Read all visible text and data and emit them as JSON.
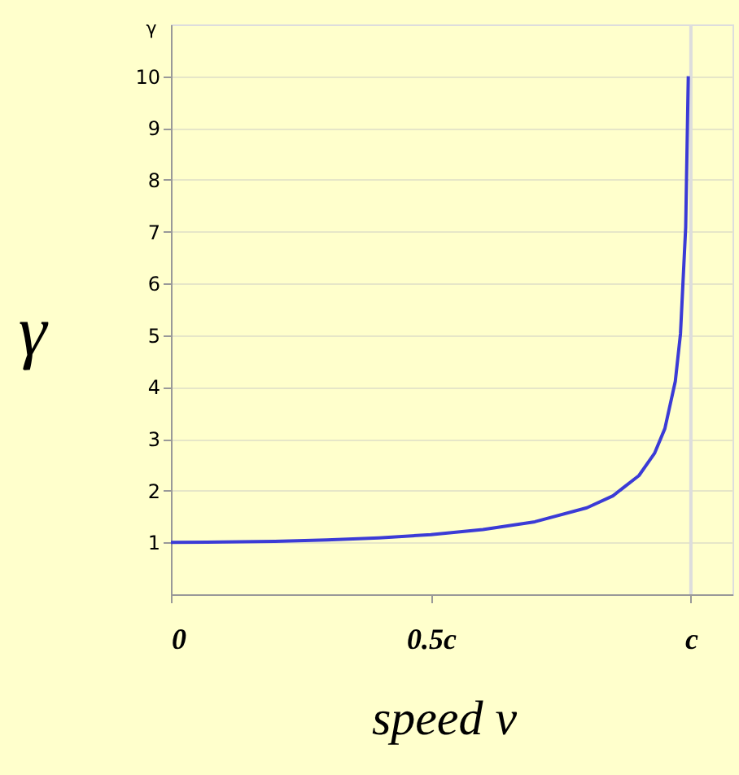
{
  "chart_data": {
    "type": "line",
    "xlabel": "speed v",
    "ylabel": "γ",
    "annotations": [
      "γ"
    ],
    "x": [
      0,
      0.1,
      0.2,
      0.3,
      0.4,
      0.5,
      0.6,
      0.7,
      0.8,
      0.85,
      0.9,
      0.93,
      0.95,
      0.97,
      0.98,
      0.99,
      0.995
    ],
    "series": [
      {
        "color": "#3b3bd6",
        "values": [
          1,
          1.01,
          1.02,
          1.05,
          1.09,
          1.15,
          1.25,
          1.4,
          1.67,
          1.9,
          2.29,
          2.72,
          3.2,
          4.11,
          5.03,
          7.09,
          10
        ]
      }
    ],
    "xlim": [
      0,
      1.08
    ],
    "ylim": [
      0,
      11
    ],
    "xticks": [
      {
        "value": 0,
        "label": "0"
      },
      {
        "value": 0.5,
        "label": "0.5c"
      },
      {
        "value": 1,
        "label": "c"
      }
    ],
    "yticks": [
      1,
      2,
      3,
      4,
      5,
      6,
      7,
      8,
      9,
      10
    ],
    "ref_lines": [
      {
        "axis": "x",
        "value": 1,
        "color": "#dddddd"
      }
    ],
    "grid": "y",
    "marker": "none",
    "line_style": "solid"
  }
}
